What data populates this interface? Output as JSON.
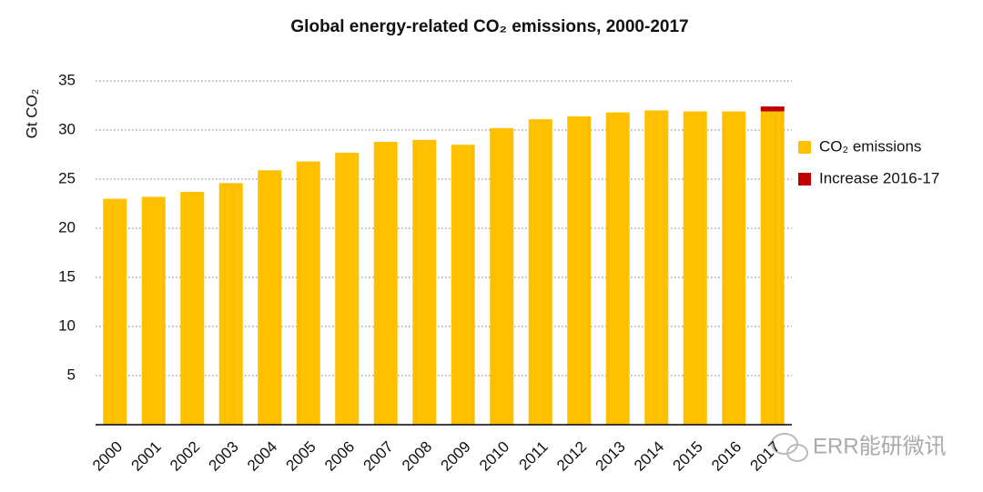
{
  "chart_data": {
    "type": "stacked-bar",
    "title": "Global energy-related CO₂ emissions, 2000-2017",
    "y_label": "Gt CO₂",
    "categories": [
      "2000",
      "2001",
      "2002",
      "2003",
      "2004",
      "2005",
      "2006",
      "2007",
      "2008",
      "2009",
      "2010",
      "2011",
      "2012",
      "2013",
      "2014",
      "2015",
      "2016",
      "2017"
    ],
    "series": [
      {
        "name": "CO₂ emissions",
        "color": "#ffc000",
        "values": [
          23.0,
          23.2,
          23.7,
          24.6,
          25.9,
          26.8,
          27.7,
          28.8,
          29.0,
          28.5,
          30.2,
          31.1,
          31.4,
          31.8,
          32.0,
          31.9,
          31.9,
          31.9
        ]
      },
      {
        "name": "Increase 2016-17",
        "color": "#c00000",
        "values": [
          null,
          null,
          null,
          null,
          null,
          null,
          null,
          null,
          null,
          null,
          null,
          null,
          null,
          null,
          null,
          null,
          null,
          0.5
        ]
      }
    ],
    "ylim": [
      0,
      35
    ],
    "yticks": [
      5,
      10,
      15,
      20,
      25,
      30,
      35
    ],
    "grid": true,
    "legend": "right",
    "watermark": "ERR能研微讯"
  }
}
